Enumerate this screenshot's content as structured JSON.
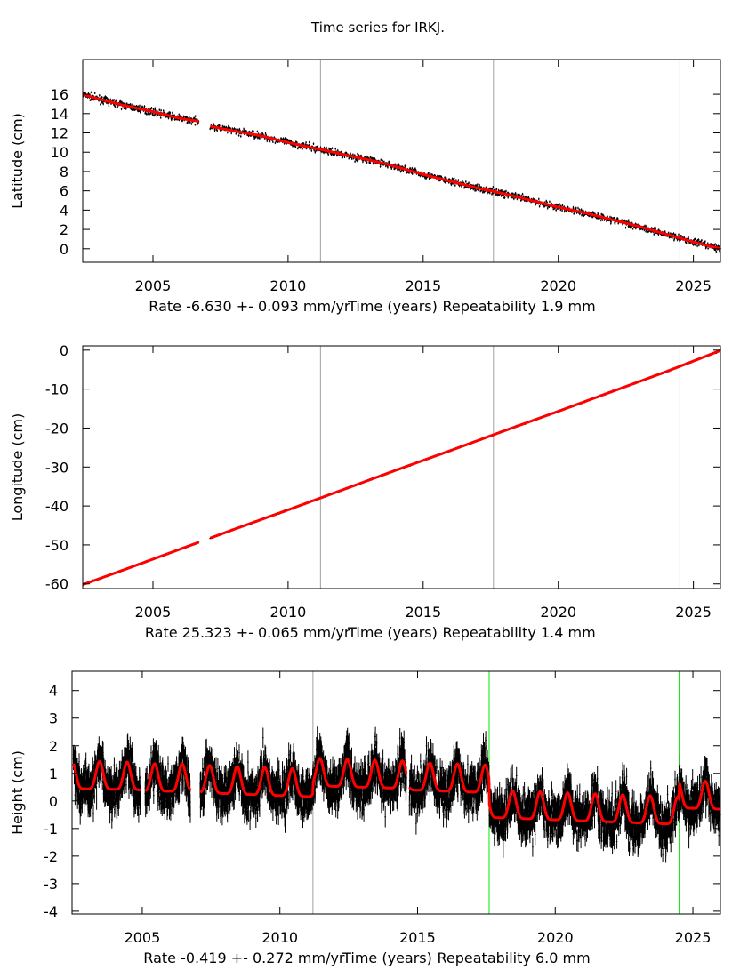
{
  "title": "Time series for IRKJ.",
  "chart_data": [
    {
      "type": "scatter",
      "ylabel": "Latitude (cm)",
      "xlabel": "Time (years)",
      "rate_label": "Rate -6.630 +- 0.093 mm/yr",
      "repeatability_label": "Repeatability 1.9 mm",
      "xlim": [
        2002.4,
        2026.0
      ],
      "ylim": [
        -1.4,
        19.6
      ],
      "xticks": [
        "2005",
        "2010",
        "2015",
        "2020",
        "2025"
      ],
      "yticks": [
        "0",
        "2",
        "4",
        "6",
        "8",
        "10",
        "12",
        "14",
        "16"
      ],
      "vlines": [
        {
          "x": 2011.2,
          "color": "#a0a0a0"
        },
        {
          "x": 2017.6,
          "color": "#a0a0a0"
        },
        {
          "x": 2024.5,
          "color": "#a0a0a0"
        }
      ],
      "gaps": [
        [
          2006.7,
          2007.1
        ]
      ],
      "fit_color": "#ff0000",
      "data_color": "#000000",
      "fit": [
        [
          2002.4,
          16.0
        ],
        [
          2003,
          15.5
        ],
        [
          2004,
          14.8
        ],
        [
          2005,
          14.2
        ],
        [
          2006,
          13.5
        ],
        [
          2006.7,
          13.2
        ],
        [
          2007.1,
          12.7
        ],
        [
          2008,
          12.2
        ],
        [
          2009,
          11.7
        ],
        [
          2010,
          11.0
        ],
        [
          2011,
          10.4
        ],
        [
          2012,
          9.8
        ],
        [
          2013,
          9.2
        ],
        [
          2014,
          8.5
        ],
        [
          2015,
          7.7
        ],
        [
          2016,
          7.0
        ],
        [
          2017,
          6.3
        ],
        [
          2018,
          5.7
        ],
        [
          2019,
          5.0
        ],
        [
          2020,
          4.3
        ],
        [
          2021,
          3.7
        ],
        [
          2022,
          3.0
        ],
        [
          2023,
          2.3
        ],
        [
          2024,
          1.5
        ],
        [
          2025,
          0.7
        ],
        [
          2026,
          0.0
        ]
      ]
    },
    {
      "type": "scatter",
      "ylabel": "Longitude (cm)",
      "xlabel": "Time (years)",
      "rate_label": "Rate 25.323 +- 0.065 mm/yr",
      "repeatability_label": "Repeatability 1.4 mm",
      "xlim": [
        2002.4,
        2026.0
      ],
      "ylim": [
        -61.2,
        1.1
      ],
      "xticks": [
        "2005",
        "2010",
        "2015",
        "2020",
        "2025"
      ],
      "yticks": [
        "-60",
        "-50",
        "-40",
        "-30",
        "-20",
        "-10",
        "0"
      ],
      "vlines": [
        {
          "x": 2011.2,
          "color": "#a0a0a0"
        },
        {
          "x": 2017.6,
          "color": "#a0a0a0"
        },
        {
          "x": 2024.5,
          "color": "#a0a0a0"
        }
      ],
      "gaps": [
        [
          2006.7,
          2007.1
        ]
      ],
      "fit_color": "#ff0000",
      "data_color": "#000000",
      "fit": [
        [
          2002.4,
          -60.2
        ],
        [
          2004,
          -56.2
        ],
        [
          2006,
          -51.1
        ],
        [
          2008,
          -46.0
        ],
        [
          2010,
          -41.0
        ],
        [
          2012,
          -35.9
        ],
        [
          2014,
          -30.8
        ],
        [
          2016,
          -25.8
        ],
        [
          2018,
          -20.7
        ],
        [
          2020,
          -15.7
        ],
        [
          2022,
          -10.6
        ],
        [
          2024,
          -5.5
        ],
        [
          2026,
          -0.1
        ]
      ]
    },
    {
      "type": "scatter",
      "ylabel": "Height (cm)",
      "xlabel": "Time (years)",
      "rate_label": "Rate -0.419 +- 0.272 mm/yr",
      "repeatability_label": "Repeatability 6.0 mm",
      "xlim": [
        2002.45,
        2026.0
      ],
      "ylim": [
        -4.1,
        4.7
      ],
      "xticks": [
        "2005",
        "2010",
        "2015",
        "2020",
        "2025"
      ],
      "yticks": [
        "-4",
        "-3",
        "-2",
        "-1",
        "0",
        "1",
        "2",
        "3",
        "4"
      ],
      "vlines": [
        {
          "x": 2011.2,
          "color": "#a0a0a0"
        },
        {
          "x": 2017.6,
          "color": "#00ee00"
        },
        {
          "x": 2024.5,
          "color": "#00ee00"
        }
      ],
      "fit_color": "#ff0000",
      "data_color": "#000000",
      "fit_segments": [
        {
          "start": 2002.5,
          "end": 2004.95,
          "base": [
            0.45,
            0.4
          ],
          "peak": 1.0
        },
        {
          "start": 2005.1,
          "end": 2006.75,
          "base": [
            0.35,
            0.35
          ],
          "peak": 1.0
        },
        {
          "start": 2007.1,
          "end": 2011.2,
          "base": [
            0.3,
            0.15
          ],
          "peak": 1.0
        },
        {
          "start": 2011.2,
          "end": 2014.6,
          "base": [
            0.55,
            0.45
          ],
          "peak": 1.0
        },
        {
          "start": 2014.7,
          "end": 2017.6,
          "base": [
            0.4,
            0.3
          ],
          "peak": 1.0
        },
        {
          "start": 2017.6,
          "end": 2024.5,
          "base": [
            -0.6,
            -0.85
          ],
          "peak": 1.0
        },
        {
          "start": 2024.5,
          "end": 2026.0,
          "base": [
            -0.25,
            -0.3
          ],
          "peak": 1.0
        }
      ]
    }
  ]
}
